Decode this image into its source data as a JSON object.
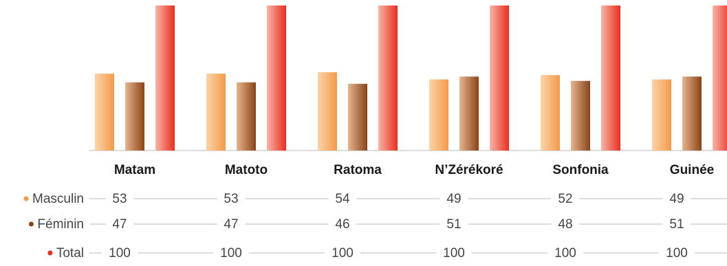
{
  "chart_data": {
    "type": "bar",
    "categories": [
      "Matam",
      "Matoto",
      "Ratoma",
      "N’Zérékoré",
      "Sonfonia",
      "Guinée"
    ],
    "series": [
      {
        "name": "Masculin",
        "values": [
          53,
          53,
          54,
          49,
          52,
          49
        ],
        "color": "#f39a4a",
        "color_light": "#fbd3a6"
      },
      {
        "name": "Féminin",
        "values": [
          47,
          47,
          46,
          51,
          48,
          51
        ],
        "color": "#8a4418",
        "color_light": "#e6b48d"
      },
      {
        "name": "Total",
        "values": [
          100,
          100,
          100,
          100,
          100,
          100
        ],
        "color": "#e82e1e",
        "color_light": "#f8b4a7"
      }
    ],
    "ylim": [
      0,
      100
    ],
    "grid": false,
    "legend": "left, as table rows",
    "baseline_color": "#bbbbbb"
  }
}
